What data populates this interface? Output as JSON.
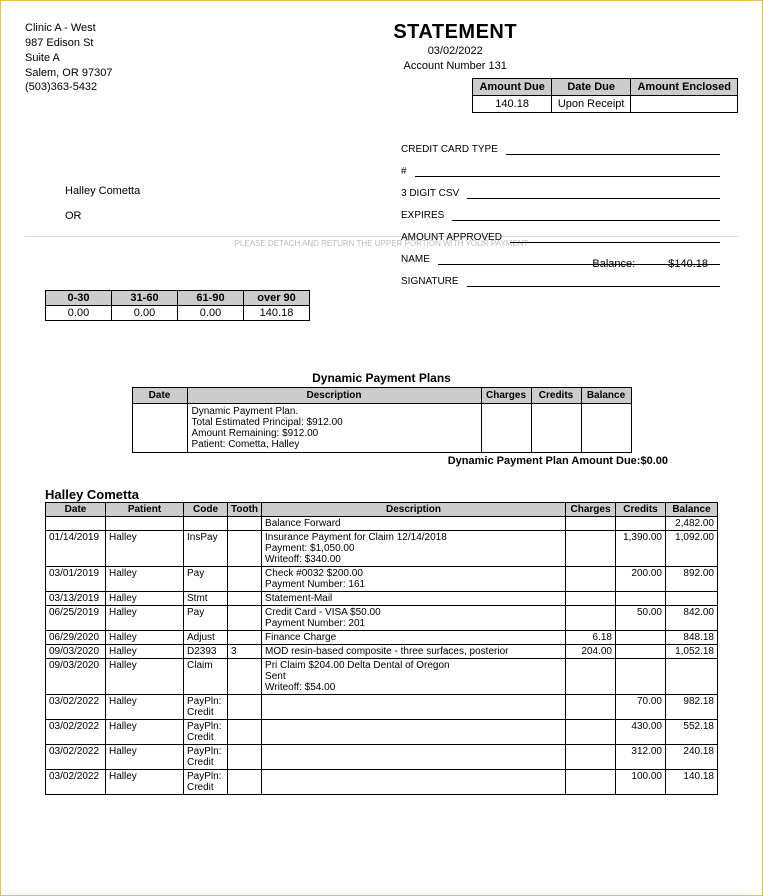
{
  "clinic": {
    "name": "Clinic A - West",
    "addr1": "987 Edison St",
    "addr2": "Suite A",
    "city": "Salem, OR 97307",
    "phone": "(503)363-5432"
  },
  "statement": {
    "title": "STATEMENT",
    "date": "03/02/2022",
    "account_label": "Account Number 131"
  },
  "summary": {
    "headers": [
      "Amount Due",
      "Date Due",
      "Amount Enclosed"
    ],
    "amount_due": "140.18",
    "date_due": "Upon Receipt",
    "enclosed": ""
  },
  "recipient": {
    "name": "Halley Cometta",
    "region": "OR"
  },
  "cc": {
    "type": "CREDIT CARD TYPE",
    "number": "#",
    "csv": "3 DIGIT CSV",
    "expires": "EXPIRES",
    "approved": "AMOUNT APPROVED",
    "name": "NAME",
    "signature": "SIGNATURE"
  },
  "detach": "PLEASE DETACH AND RETURN THE UPPER PORTION WITH YOUR PAYMENT",
  "balance": {
    "label": "Balance:",
    "value": "$140.18"
  },
  "aging": {
    "headers": [
      "0-30",
      "31-60",
      "61-90",
      "over 90"
    ],
    "values": [
      "0.00",
      "0.00",
      "0.00",
      "140.18"
    ]
  },
  "plans": {
    "title": "Dynamic Payment Plans",
    "headers": [
      "Date",
      "Description",
      "Charges",
      "Credits",
      "Balance"
    ],
    "row": {
      "date": "",
      "desc1": "Dynamic Payment Plan.",
      "desc2": "Total Estimated Principal: $912.00",
      "desc3": "Amount Remaining: $912.00",
      "desc4": "Patient: Cometta, Halley",
      "charges": "",
      "credits": "",
      "balance": ""
    },
    "due_label": "Dynamic Payment Plan Amount Due:$0.00"
  },
  "ledger": {
    "patient_name": "Halley Cometta",
    "headers": [
      "Date",
      "Patient",
      "Code",
      "Tooth",
      "Description",
      "Charges",
      "Credits",
      "Balance"
    ],
    "rows": [
      {
        "date": "",
        "patient": "",
        "code": "",
        "tooth": "",
        "desc": "Balance Forward",
        "charges": "",
        "credits": "",
        "balance": "2,482.00"
      },
      {
        "date": "01/14/2019",
        "patient": "Halley",
        "code": "InsPay",
        "tooth": "",
        "desc": "Insurance Payment for Claim 12/14/2018\nPayment: $1,050.00\nWriteoff: $340.00",
        "charges": "",
        "credits": "1,390.00",
        "balance": "1,092.00"
      },
      {
        "date": "03/01/2019",
        "patient": "Halley",
        "code": "Pay",
        "tooth": "",
        "desc": "Check #0032 $200.00\nPayment Number: 161",
        "charges": "",
        "credits": "200.00",
        "balance": "892.00"
      },
      {
        "date": "03/13/2019",
        "patient": "Halley",
        "code": "Stmt",
        "tooth": "",
        "desc": "Statement-Mail",
        "charges": "",
        "credits": "",
        "balance": ""
      },
      {
        "date": "06/25/2019",
        "patient": "Halley",
        "code": "Pay",
        "tooth": "",
        "desc": "Credit Card - VISA $50.00\nPayment Number: 201",
        "charges": "",
        "credits": "50.00",
        "balance": "842.00"
      },
      {
        "date": "06/29/2020",
        "patient": "Halley",
        "code": "Adjust",
        "tooth": "",
        "desc": "Finance Charge",
        "charges": "6.18",
        "credits": "",
        "balance": "848.18"
      },
      {
        "date": "09/03/2020",
        "patient": "Halley",
        "code": "D2393",
        "tooth": "3",
        "desc": "MOD resin-based composite - three surfaces, posterior",
        "charges": "204.00",
        "credits": "",
        "balance": "1,052.18"
      },
      {
        "date": "09/03/2020",
        "patient": "Halley",
        "code": "Claim",
        "tooth": "",
        "desc": "Pri Claim $204.00 Delta Dental of Oregon\nSent\nWriteoff: $54.00",
        "charges": "",
        "credits": "",
        "balance": ""
      },
      {
        "date": "03/02/2022",
        "patient": "Halley",
        "code": "PayPln: Credit",
        "tooth": "",
        "desc": "",
        "charges": "",
        "credits": "70.00",
        "balance": "982.18"
      },
      {
        "date": "03/02/2022",
        "patient": "Halley",
        "code": "PayPln: Credit",
        "tooth": "",
        "desc": "",
        "charges": "",
        "credits": "430.00",
        "balance": "552.18"
      },
      {
        "date": "03/02/2022",
        "patient": "Halley",
        "code": "PayPln: Credit",
        "tooth": "",
        "desc": "",
        "charges": "",
        "credits": "312.00",
        "balance": "240.18"
      },
      {
        "date": "03/02/2022",
        "patient": "Halley",
        "code": "PayPln: Credit",
        "tooth": "",
        "desc": "",
        "charges": "",
        "credits": "100.00",
        "balance": "140.18"
      }
    ]
  }
}
